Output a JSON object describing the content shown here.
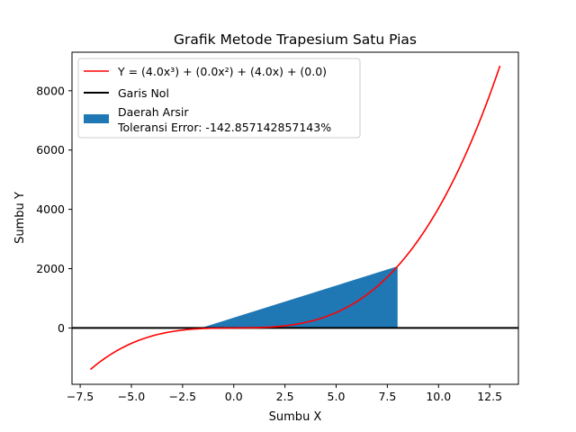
{
  "chart_data": {
    "type": "line",
    "title": "Grafik Metode Trapesium Satu Pias",
    "xlabel": "Sumbu X",
    "ylabel": "Sumbu Y",
    "xlim": [
      -7.9,
      13.9
    ],
    "ylim": [
      -1900,
      9300
    ],
    "xticks": [
      -7.5,
      -5.0,
      -2.5,
      0.0,
      2.5,
      5.0,
      7.5,
      10.0,
      12.5
    ],
    "xtick_labels": [
      "−7.5",
      "−5.0",
      "−2.5",
      "0.0",
      "2.5",
      "5.0",
      "7.5",
      "10.0",
      "12.5"
    ],
    "yticks": [
      0,
      2000,
      4000,
      6000,
      8000
    ],
    "ytick_labels": [
      "0",
      "2000",
      "4000",
      "6000",
      "8000"
    ],
    "grid": false,
    "legend_position": "top-left",
    "function": {
      "label": "Y = (4.0x³) + (0.0x²) + (4.0x) + (0.0)",
      "coefficients": [
        4.0,
        0.0,
        4.0,
        0.0
      ],
      "x_range": [
        -7,
        13
      ],
      "color": "#ff0000"
    },
    "zero_line": {
      "label": "Garis Nol",
      "y": 0,
      "color": "#000000"
    },
    "shaded_area": {
      "label_line1": "Daerah Arsir",
      "label_line2": "Toleransi Error: -142.857142857143%",
      "polygon": [
        [
          -1.6,
          0
        ],
        [
          8,
          2080
        ],
        [
          8,
          0
        ]
      ],
      "color": "#1f77b4"
    }
  }
}
